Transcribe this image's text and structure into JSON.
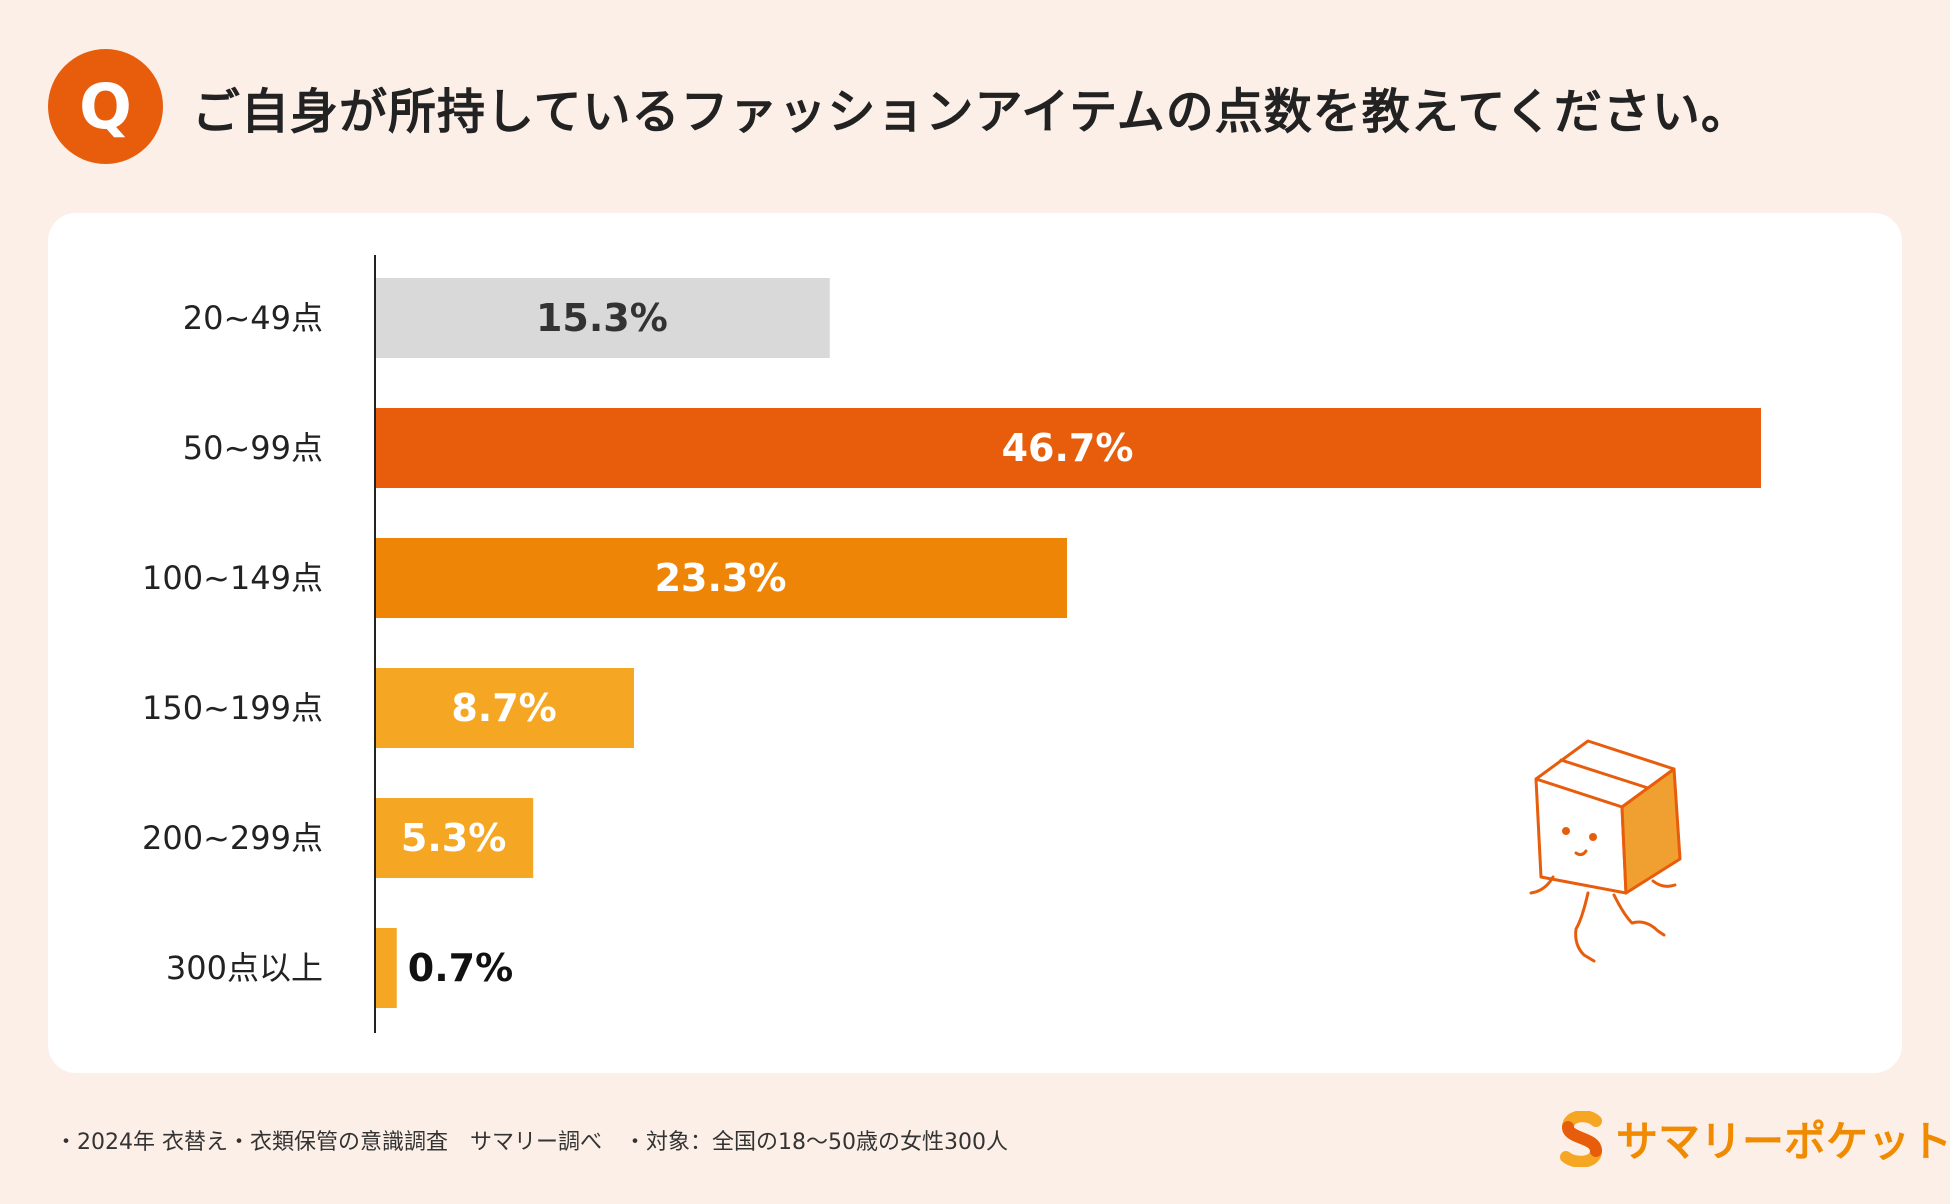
{
  "header": {
    "badge": "Q",
    "question": "ご自身が所持しているファッションアイテムの点数を教えてください。"
  },
  "chart_data": {
    "type": "bar",
    "orientation": "horizontal",
    "title": "ご自身が所持しているファッションアイテムの点数を教えてください。",
    "categories": [
      "20~49点",
      "50~99点",
      "100~149点",
      "150~199点",
      "200~299点",
      "300点以上"
    ],
    "values": [
      15.3,
      46.7,
      23.3,
      8.7,
      5.3,
      0.7
    ],
    "value_labels": [
      "15.3%",
      "46.7%",
      "23.3%",
      "8.7%",
      "5.3%",
      "0.7%"
    ],
    "colors": [
      "#d9d9d9",
      "#e85d0c",
      "#ef8506",
      "#f5a623",
      "#f5a623",
      "#f5a623"
    ],
    "label_colors": [
      "#333333",
      "#ffffff",
      "#ffffff",
      "#ffffff",
      "#ffffff",
      "#111111"
    ],
    "unit": "%",
    "xlim": [
      0,
      50
    ],
    "grid": false
  },
  "footer": {
    "note": "・2024年 衣替え・衣類保管の意識調査　サマリー調べ　・対象：全国の18〜50歳の女性300人"
  },
  "brand": {
    "name": "サマリーポケット",
    "color": "#f08a00"
  }
}
